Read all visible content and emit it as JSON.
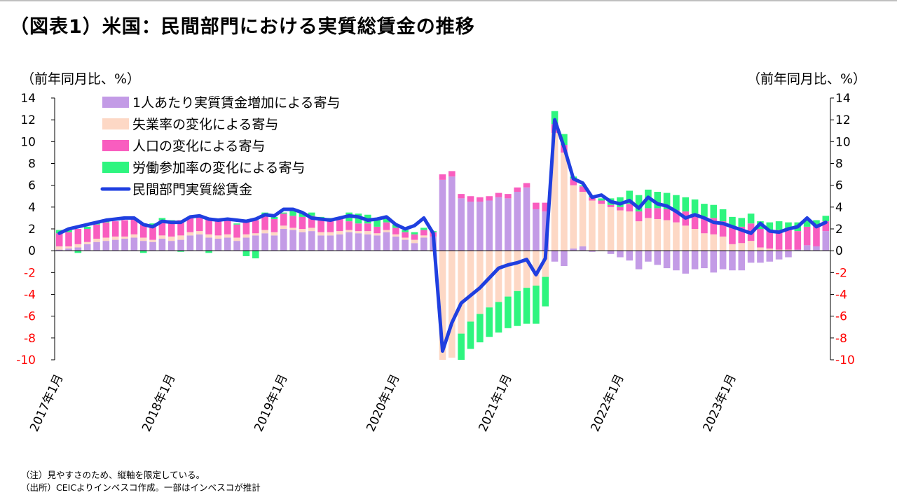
{
  "title": "（図表1）米国：民間部門における実質総賃金の推移",
  "unit_left": "（前年同月比、%）",
  "unit_right": "（前年同月比、%）",
  "notes": [
    "（注）見やすさのため、縦軸を限定している。",
    "（出所）CEICよりインベスコ作成。一部はインベスコが推計"
  ],
  "colors": {
    "per_capita": "#c39be6",
    "unemployment": "#fdd8c5",
    "population": "#f95dbf",
    "participation": "#2ef57f",
    "line": "#1f3fe0",
    "negative_tick": "#ff0000"
  },
  "chart_data": {
    "type": "bar",
    "stacked": true,
    "title": "",
    "xlabel": "",
    "ylabel": "（前年同月比、%）",
    "ylim": [
      -10,
      14
    ],
    "y_ticks": [
      14,
      12,
      10,
      8,
      6,
      4,
      2,
      0,
      -2,
      -4,
      -6,
      -8,
      -10
    ],
    "grid": false,
    "legend_position": "top-left",
    "x_tick_labels": [
      {
        "label": "2017年1月",
        "index": 0
      },
      {
        "label": "2018年1月",
        "index": 12
      },
      {
        "label": "2019年1月",
        "index": 24
      },
      {
        "label": "2020年1月",
        "index": 36
      },
      {
        "label": "2021年1月",
        "index": 48
      },
      {
        "label": "2022年1月",
        "index": 60
      },
      {
        "label": "2023年1月",
        "index": 72
      }
    ],
    "series": [
      {
        "name": "1人あたり実質賃金増加による寄与",
        "key": "per_capita",
        "kind": "bar",
        "values": [
          0.1,
          0.2,
          0.3,
          0.6,
          0.8,
          0.9,
          1.0,
          1.1,
          1.2,
          0.9,
          0.8,
          1.1,
          0.9,
          1.0,
          1.4,
          1.5,
          1.2,
          1.1,
          1.2,
          0.9,
          1.2,
          1.4,
          1.6,
          1.4,
          2.0,
          1.9,
          1.7,
          1.8,
          1.4,
          1.4,
          1.5,
          1.7,
          1.6,
          1.5,
          1.4,
          1.7,
          1.3,
          1.0,
          0.7,
          1.2,
          1.3,
          6.5,
          6.8,
          4.8,
          4.5,
          4.5,
          4.6,
          4.9,
          4.8,
          5.4,
          5.8,
          3.8,
          3.6,
          -1.0,
          -1.4,
          0.2,
          0.4,
          -0.1,
          0.0,
          -0.3,
          -0.6,
          -0.9,
          -1.7,
          -1.0,
          -1.3,
          -1.6,
          -1.8,
          -2.1,
          -1.7,
          -1.6,
          -2.0,
          -1.7,
          -1.8,
          -1.8,
          -1.1,
          -1.1,
          -1.0,
          -0.8,
          -0.6,
          0.1,
          0.5,
          0.4,
          1.8
        ]
      },
      {
        "name": "失業率の変化による寄与",
        "key": "unemployment",
        "kind": "bar",
        "values": [
          0.3,
          0.2,
          0.3,
          0.2,
          0.3,
          0.3,
          0.3,
          0.2,
          0.3,
          0.3,
          0.2,
          0.3,
          0.4,
          0.4,
          0.3,
          0.3,
          0.3,
          0.3,
          0.3,
          0.3,
          0.3,
          0.2,
          0.3,
          0.3,
          0.3,
          0.2,
          0.3,
          0.3,
          0.3,
          0.3,
          0.3,
          0.2,
          0.2,
          0.3,
          0.2,
          0.2,
          0.2,
          0.2,
          0.3,
          0.2,
          -0.1,
          -10.0,
          -9.8,
          -7.6,
          -6.5,
          -5.8,
          -5.2,
          -4.7,
          -4.2,
          -3.7,
          -3.4,
          -3.2,
          -2.4,
          10.8,
          9.0,
          5.8,
          5.0,
          4.6,
          4.3,
          4.0,
          3.7,
          3.6,
          2.7,
          3.0,
          2.9,
          2.8,
          2.6,
          2.3,
          2.0,
          1.6,
          1.5,
          1.3,
          0.6,
          0.7,
          0.9,
          0.3,
          0.2,
          0.1,
          0.1,
          0.0,
          0.0,
          0.0,
          0.0
        ]
      },
      {
        "name": "人口の変化による寄与",
        "key": "population",
        "kind": "bar",
        "values": [
          1.2,
          1.3,
          1.4,
          1.2,
          1.3,
          1.4,
          1.4,
          1.5,
          1.5,
          1.3,
          1.3,
          1.4,
          1.3,
          1.4,
          1.3,
          1.3,
          1.5,
          1.4,
          1.3,
          1.2,
          1.3,
          1.2,
          1.4,
          1.2,
          1.1,
          1.1,
          1.1,
          1.1,
          1.2,
          1.1,
          1.1,
          0.8,
          0.7,
          0.7,
          0.6,
          0.7,
          0.6,
          0.5,
          0.5,
          0.5,
          0.4,
          0.5,
          0.5,
          0.4,
          0.5,
          0.4,
          0.4,
          0.4,
          0.4,
          0.4,
          0.4,
          0.6,
          0.8,
          0.8,
          0.7,
          0.6,
          0.5,
          0.3,
          0.3,
          0.2,
          0.3,
          0.7,
          0.9,
          0.9,
          1.0,
          1.0,
          1.1,
          1.3,
          1.4,
          1.5,
          1.5,
          1.4,
          1.5,
          1.5,
          1.6,
          1.7,
          1.7,
          1.8,
          1.8,
          1.7,
          1.7,
          1.9,
          0.9
        ]
      },
      {
        "name": "労働参加率の変化による寄与",
        "key": "participation",
        "kind": "bar",
        "values": [
          0.3,
          0.2,
          -0.2,
          0.2,
          0.2,
          0.2,
          0.0,
          0.0,
          0.0,
          -0.2,
          0.2,
          0.2,
          0.2,
          -0.1,
          0.1,
          0.1,
          -0.2,
          0.0,
          0.1,
          0.1,
          -0.5,
          -0.7,
          0.2,
          0.2,
          0.1,
          0.5,
          0.4,
          0.3,
          0.2,
          0.2,
          0.1,
          0.8,
          0.9,
          0.8,
          0.8,
          0.5,
          0.3,
          0.2,
          0.2,
          0.2,
          0.1,
          0.0,
          0.0,
          -2.4,
          -2.5,
          -2.6,
          -2.7,
          -2.8,
          -2.9,
          -3.2,
          -3.3,
          -3.5,
          -2.7,
          1.2,
          1.0,
          0.2,
          0.1,
          0.1,
          0.2,
          0.6,
          0.9,
          1.2,
          1.5,
          1.7,
          1.5,
          1.5,
          1.4,
          1.3,
          1.3,
          1.2,
          1.2,
          1.1,
          1.0,
          0.8,
          0.9,
          0.7,
          0.7,
          0.8,
          0.7,
          0.8,
          0.6,
          0.5,
          0.5
        ]
      },
      {
        "name": "民間部門実質総賃金",
        "key": "line",
        "kind": "line",
        "values": [
          1.6,
          2.0,
          2.2,
          2.4,
          2.6,
          2.8,
          2.9,
          3.0,
          3.0,
          2.4,
          2.2,
          2.7,
          2.6,
          2.6,
          3.1,
          3.2,
          2.9,
          2.8,
          2.9,
          2.8,
          2.7,
          2.9,
          3.3,
          3.2,
          3.8,
          3.8,
          3.5,
          3.0,
          2.9,
          2.8,
          3.0,
          3.2,
          3.1,
          2.8,
          2.9,
          3.1,
          2.4,
          2.0,
          2.3,
          3.0,
          1.6,
          -9.2,
          -6.6,
          -4.8,
          -4.1,
          -3.4,
          -2.5,
          -1.6,
          -1.3,
          -1.1,
          -0.8,
          -2.2,
          -0.7,
          12.0,
          9.5,
          6.6,
          6.2,
          4.9,
          5.1,
          4.5,
          4.3,
          4.6,
          3.9,
          4.9,
          4.3,
          4.1,
          3.6,
          3.0,
          3.3,
          3.0,
          2.6,
          2.5,
          2.2,
          1.9,
          1.6,
          2.5,
          1.8,
          1.7,
          2.0,
          2.2,
          3.0,
          2.2,
          2.6
        ]
      }
    ]
  }
}
